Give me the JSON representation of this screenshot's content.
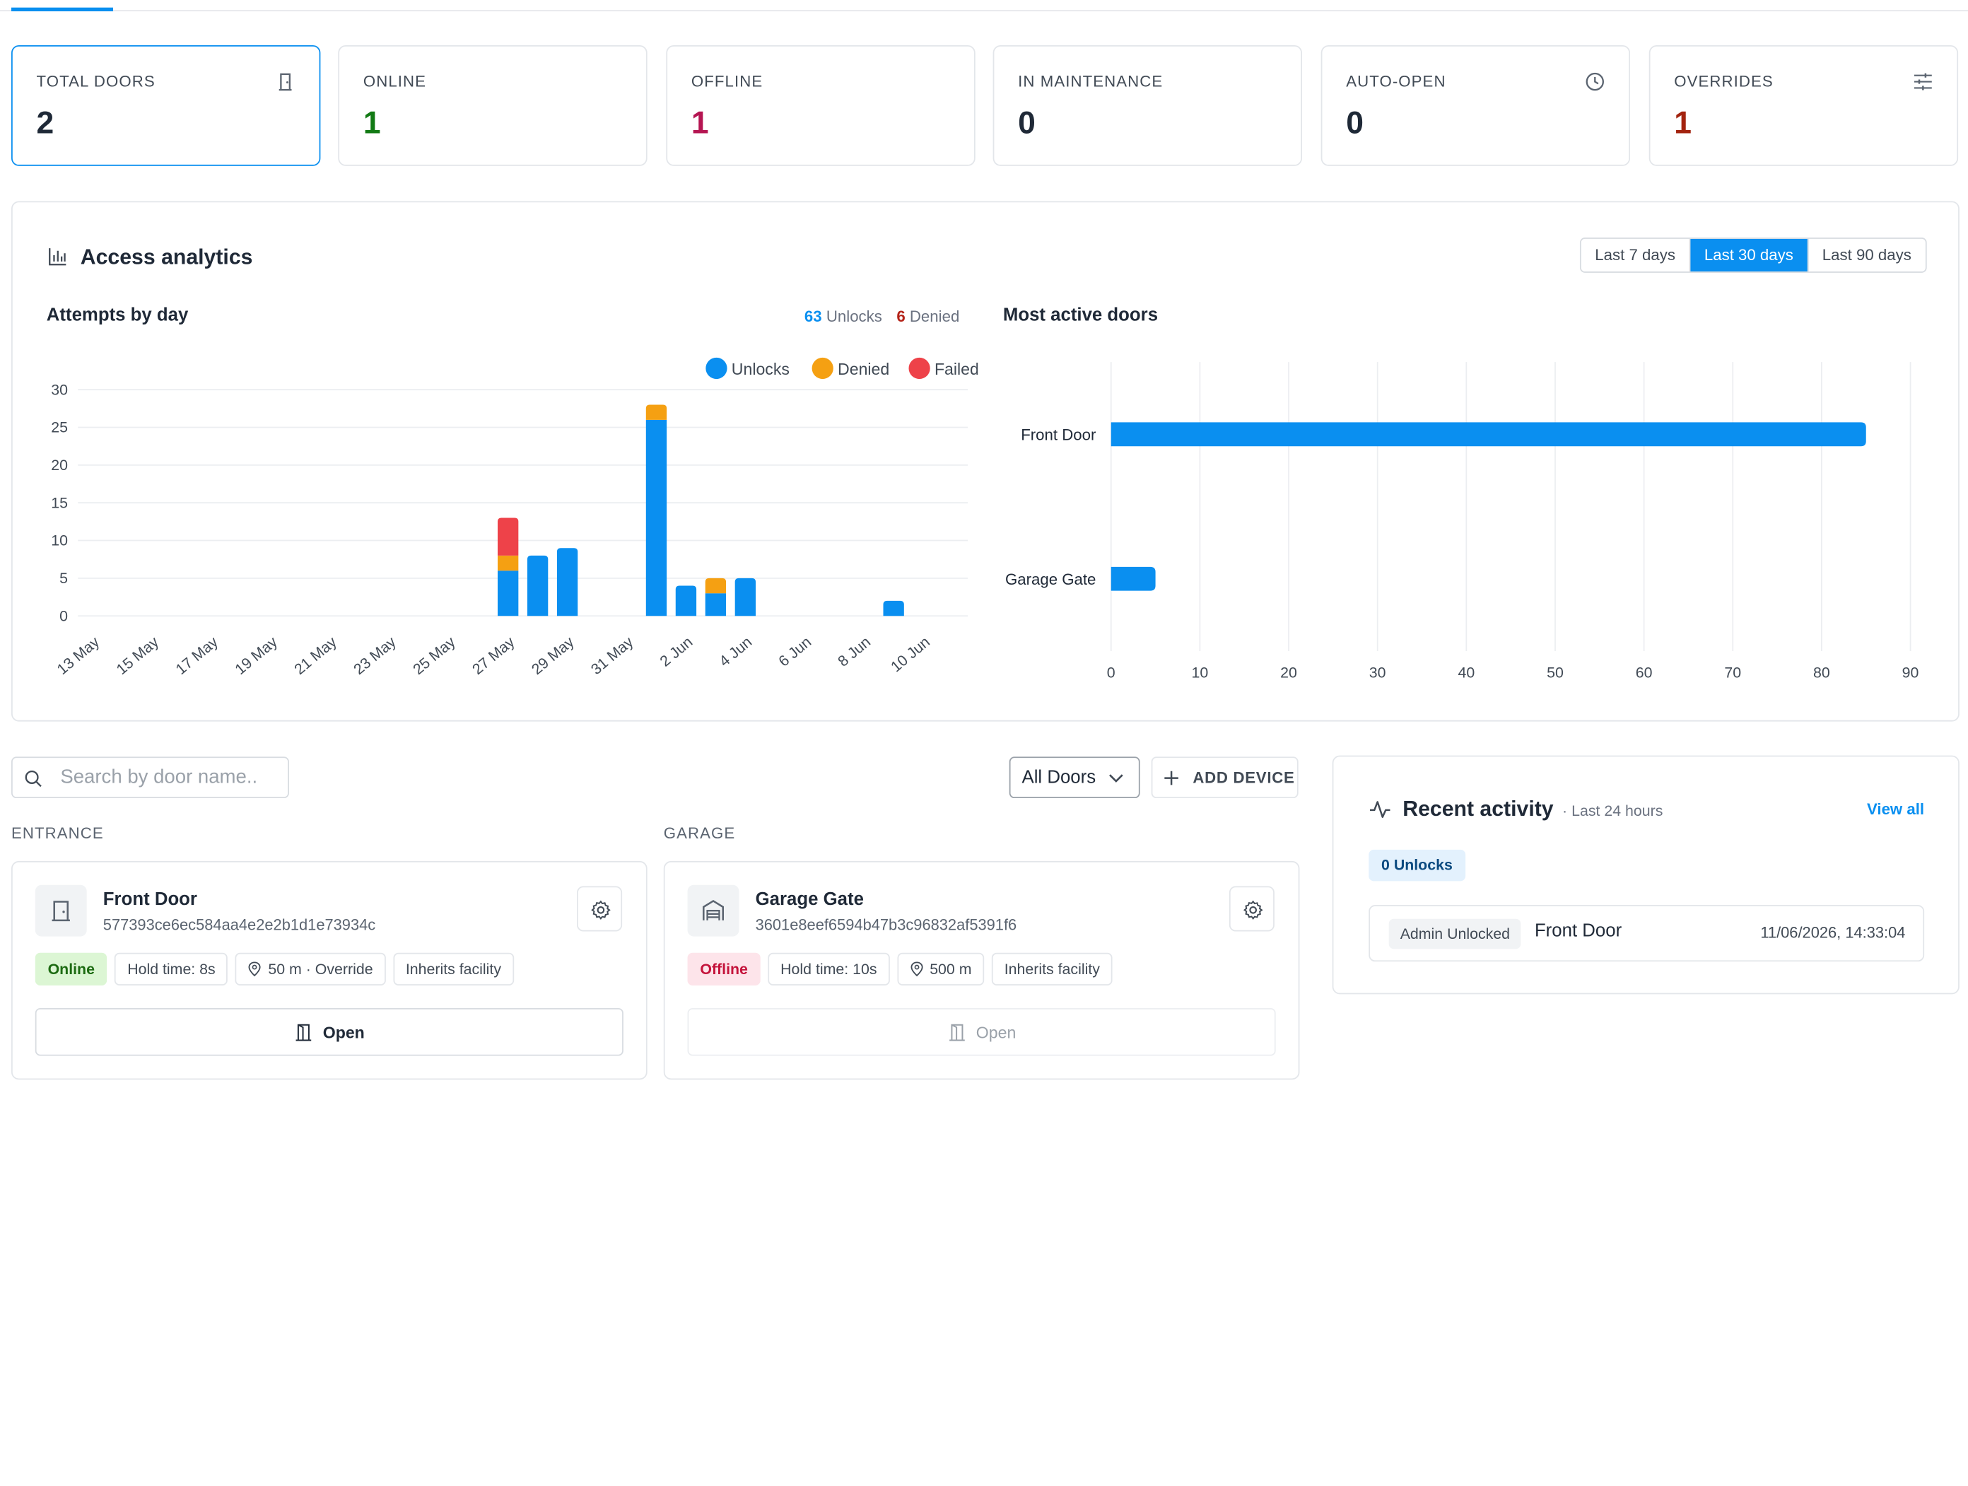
{
  "stats": [
    {
      "label": "TOTAL DOORS",
      "value": "2",
      "color": "#1f2937",
      "icon": "door-icon",
      "selected": true
    },
    {
      "label": "ONLINE",
      "value": "1",
      "color": "#127a14",
      "icon": "",
      "selected": false
    },
    {
      "label": "OFFLINE",
      "value": "1",
      "color": "#b51552",
      "icon": "",
      "selected": false
    },
    {
      "label": "IN MAINTENANCE",
      "value": "0",
      "color": "#1f2937",
      "icon": "",
      "selected": false
    },
    {
      "label": "AUTO-OPEN",
      "value": "0",
      "color": "#1f2937",
      "icon": "clock-icon",
      "selected": false
    },
    {
      "label": "OVERRIDES",
      "value": "1",
      "color": "#a3230f",
      "icon": "sliders-icon",
      "selected": false
    }
  ],
  "analytics": {
    "title": "Access analytics",
    "ranges": [
      "Last 7 days",
      "Last 30 days",
      "Last 90 days"
    ],
    "active_range": "Last 30 days",
    "attempts_title": "Attempts by day",
    "unlocks_count": "63",
    "unlocks_label": "Unlocks",
    "denied_count": "6",
    "denied_label": "Denied",
    "active_doors_title": "Most active doors"
  },
  "chart_data": [
    {
      "type": "bar",
      "stacked": true,
      "title": "Attempts by day",
      "categories": [
        "13 May",
        "14 May",
        "15 May",
        "16 May",
        "17 May",
        "18 May",
        "19 May",
        "20 May",
        "21 May",
        "22 May",
        "23 May",
        "24 May",
        "25 May",
        "26 May",
        "27 May",
        "28 May",
        "29 May",
        "30 May",
        "31 May",
        "1 Jun",
        "2 Jun",
        "3 Jun",
        "4 Jun",
        "5 Jun",
        "6 Jun",
        "7 Jun",
        "8 Jun",
        "9 Jun",
        "10 Jun",
        "11 Jun"
      ],
      "tick_labels": [
        "13 May",
        "15 May",
        "17 May",
        "19 May",
        "21 May",
        "23 May",
        "25 May",
        "27 May",
        "29 May",
        "31 May",
        "2 Jun",
        "4 Jun",
        "6 Jun",
        "8 Jun",
        "10 Jun"
      ],
      "series": [
        {
          "name": "Unlocks",
          "color": "#0a8ff0",
          "values": [
            0,
            0,
            0,
            0,
            0,
            0,
            0,
            0,
            0,
            0,
            0,
            0,
            0,
            0,
            6,
            8,
            9,
            0,
            0,
            26,
            4,
            3,
            5,
            0,
            0,
            0,
            0,
            2,
            0,
            0
          ]
        },
        {
          "name": "Denied",
          "color": "#f5a012",
          "values": [
            0,
            0,
            0,
            0,
            0,
            0,
            0,
            0,
            0,
            0,
            0,
            0,
            0,
            0,
            2,
            0,
            0,
            0,
            0,
            2,
            0,
            2,
            0,
            0,
            0,
            0,
            0,
            0,
            0,
            0
          ]
        },
        {
          "name": "Failed",
          "color": "#ee4249",
          "values": [
            0,
            0,
            0,
            0,
            0,
            0,
            0,
            0,
            0,
            0,
            0,
            0,
            0,
            0,
            5,
            0,
            0,
            0,
            0,
            0,
            0,
            0,
            0,
            0,
            0,
            0,
            0,
            0,
            0,
            0
          ]
        }
      ],
      "yticks": [
        0,
        5,
        10,
        15,
        20,
        25,
        30
      ],
      "ylim": [
        0,
        30
      ],
      "legend": "top-right",
      "grid": true
    },
    {
      "type": "bar",
      "orientation": "horizontal",
      "title": "Most active doors",
      "categories": [
        "Front Door",
        "Garage Gate"
      ],
      "values": [
        85,
        5
      ],
      "color": "#0a8ff0",
      "xticks": [
        0,
        10,
        20,
        30,
        40,
        50,
        60,
        70,
        80,
        90
      ],
      "xlim": [
        0,
        90
      ],
      "grid": true
    }
  ],
  "toolbar": {
    "search_placeholder": "Search by door name..",
    "filter_value": "All Doors",
    "add_label": "ADD DEVICE"
  },
  "groups": [
    {
      "label": "ENTRANCE",
      "door": {
        "name": "Front Door",
        "id": "577393ce6ec584aa4e2e2b1d1e73934c",
        "status": "Online",
        "hold": "Hold time: 8s",
        "radius": "50 m · Override",
        "inherit": "Inherits facility",
        "open_label": "Open",
        "icon": "door-icon"
      }
    },
    {
      "label": "GARAGE",
      "door": {
        "name": "Garage Gate",
        "id": "3601e8eef6594b47b3c96832af5391f6",
        "status": "Offline",
        "hold": "Hold time: 10s",
        "radius": "500 m",
        "inherit": "Inherits facility",
        "open_label": "Open",
        "icon": "garage-icon"
      }
    }
  ],
  "activity": {
    "title": "Recent activity",
    "subtitle": "· Last 24 hours",
    "view_all": "View all",
    "badge": "0 Unlocks",
    "rows": [
      {
        "action": "Admin Unlocked",
        "door": "Front Door",
        "time": "11/06/2026, 14:33:04"
      }
    ]
  }
}
